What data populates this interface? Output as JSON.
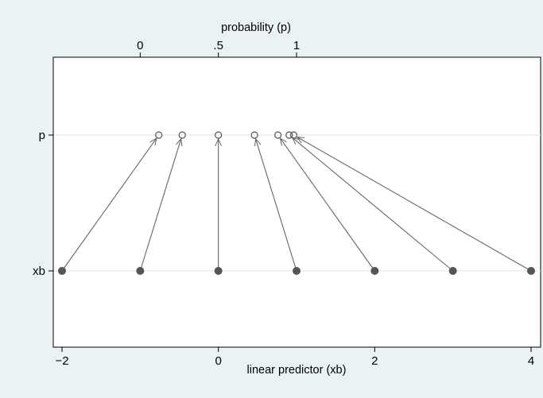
{
  "chart_data": {
    "type": "scatter",
    "title": "",
    "xlabel": "linear predictor (xb)",
    "x2label": "probability (p)",
    "xlim": [
      -2,
      4
    ],
    "x_ticks": [
      -2,
      0,
      2,
      4
    ],
    "x_tick_labels": [
      "−2",
      "0",
      "2",
      "4"
    ],
    "x2_ticks": [
      0,
      0.5,
      1
    ],
    "x2_tick_labels": [
      "0",
      ".5",
      "1"
    ],
    "x2_axis_mapping": "p shown on the same scale as xb (0 at xb=-1, 1 at xb=1)",
    "y_categories": [
      "p",
      "xb"
    ],
    "grid": false,
    "series": [
      {
        "name": "xb",
        "marker": "filled-circle",
        "x": [
          -2,
          -1,
          0,
          1,
          2,
          3,
          4
        ]
      },
      {
        "name": "p",
        "marker": "hollow-circle",
        "x": [
          0.119,
          0.269,
          0.5,
          0.731,
          0.881,
          0.953,
          0.982
        ]
      }
    ],
    "arrows": "each xb point connected by arrow to its p point",
    "colors": {
      "marker": "#555555",
      "line": "#666666",
      "plot_bg": "#ffffff",
      "page_bg": "#eaf2f3"
    }
  }
}
